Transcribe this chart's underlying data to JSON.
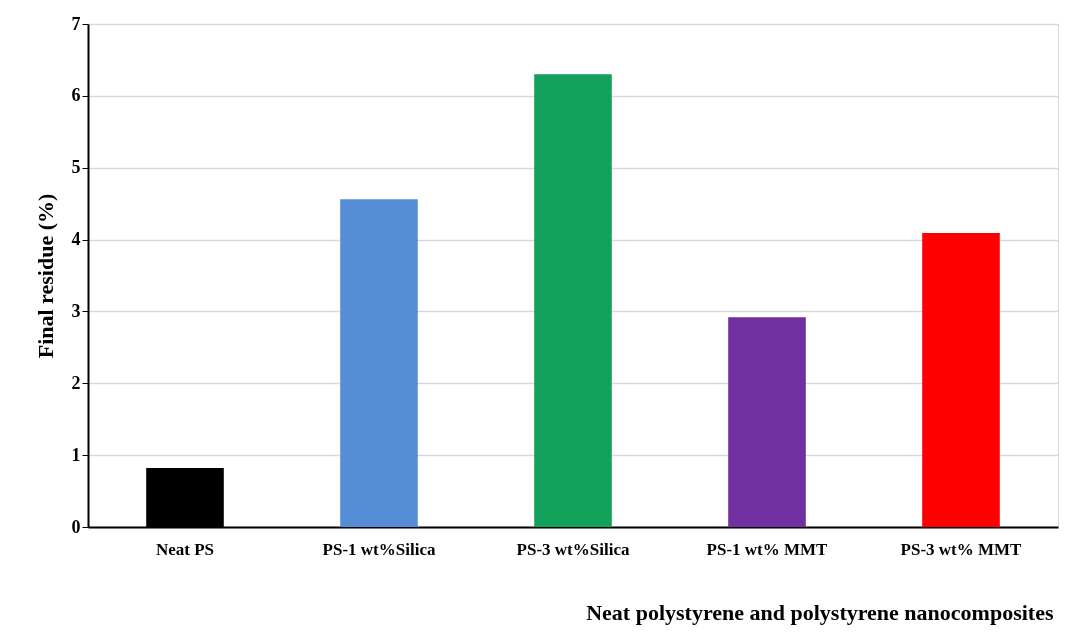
{
  "chart_data": {
    "type": "bar",
    "xlabel": "Neat polystyrene and polystyrene nanocomposites",
    "ylabel": "Final residue (%)",
    "categories": [
      "Neat PS",
      "PS-1 wt%Silica",
      "PS-3 wt%Silica",
      "PS-1 wt% MMT",
      "PS-3 wt% MMT"
    ],
    "values": [
      0.82,
      4.56,
      6.3,
      2.92,
      4.09
    ],
    "colors": [
      "#000000",
      "#558ed5",
      "#13a05a",
      "#7030a0",
      "#ff0000"
    ],
    "ylim": [
      0,
      7
    ],
    "yticks": [
      0,
      1,
      2,
      3,
      4,
      5,
      6,
      7
    ],
    "grid": "y",
    "legend": false
  }
}
